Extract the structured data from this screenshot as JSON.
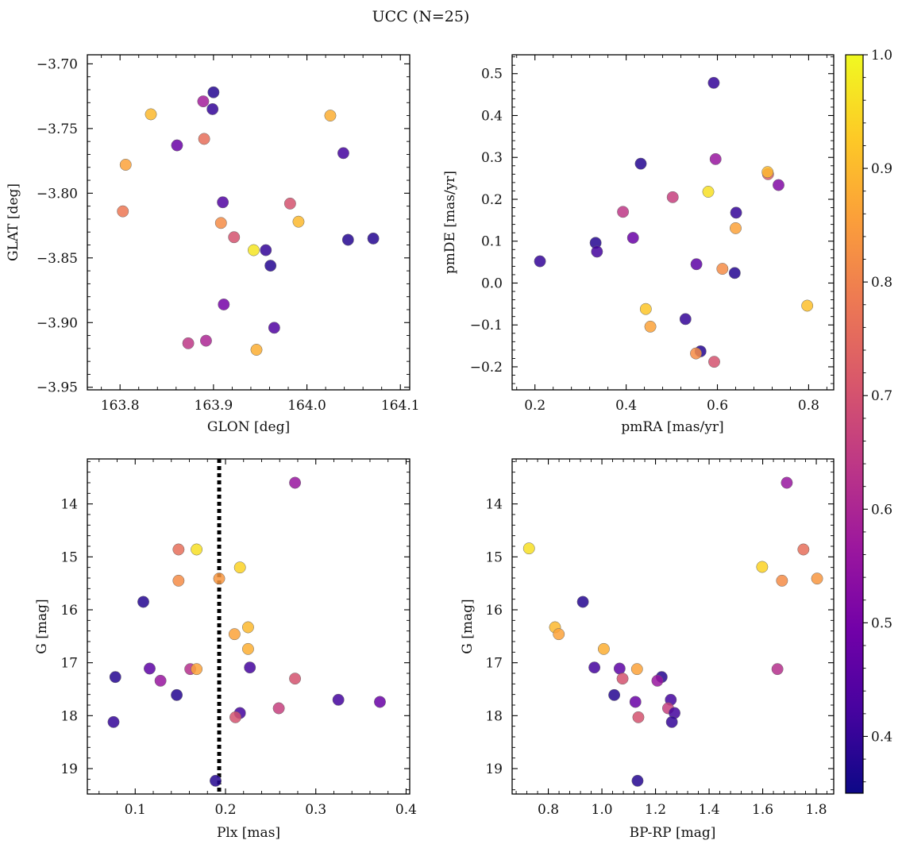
{
  "figure": {
    "title": "UCC (N=25)"
  },
  "colorbar": {
    "cmap": "plasma",
    "range": [
      0.35,
      1.0
    ],
    "ticks": [
      0.4,
      0.5,
      0.6,
      0.7,
      0.8,
      0.9,
      1.0
    ],
    "tick_labels": [
      "0.4",
      "0.5",
      "0.6",
      "0.7",
      "0.8",
      "0.9",
      "1.0"
    ],
    "stops": [
      "#0d0887",
      "#46039f",
      "#7201a8",
      "#9c179e",
      "#bd3786",
      "#d8576b",
      "#ed7953",
      "#fb9f3a",
      "#fdca26",
      "#f0f921"
    ]
  },
  "chart_data": [
    {
      "type": "scatter",
      "xlabel": "GLON [deg]",
      "ylabel": "GLAT [deg]",
      "xlim": [
        163.765,
        164.11
      ],
      "ylim": [
        -3.952,
        -3.693
      ],
      "xticks": [
        163.8,
        163.9,
        164.0,
        164.1
      ],
      "xtick_labels": [
        "163.8",
        "163.9",
        "164.0",
        "164.1"
      ],
      "yticks": [
        -3.95,
        -3.9,
        -3.85,
        -3.8,
        -3.75,
        -3.7
      ],
      "ytick_labels": [
        "−3.95",
        "−3.90",
        "−3.85",
        "−3.80",
        "−3.75",
        "−3.70"
      ],
      "invert_y": false,
      "points": [
        {
          "x": 163.833,
          "y": -3.739,
          "c": 0.9
        },
        {
          "x": 163.806,
          "y": -3.778,
          "c": 0.86
        },
        {
          "x": 163.803,
          "y": -3.814,
          "c": 0.78
        },
        {
          "x": 163.861,
          "y": -3.763,
          "c": 0.48
        },
        {
          "x": 163.889,
          "y": -3.729,
          "c": 0.58
        },
        {
          "x": 163.89,
          "y": -3.758,
          "c": 0.76
        },
        {
          "x": 163.9,
          "y": -3.722,
          "c": 0.38
        },
        {
          "x": 163.899,
          "y": -3.735,
          "c": 0.4
        },
        {
          "x": 163.91,
          "y": -3.807,
          "c": 0.44
        },
        {
          "x": 163.908,
          "y": -3.823,
          "c": 0.82
        },
        {
          "x": 163.922,
          "y": -3.834,
          "c": 0.7
        },
        {
          "x": 163.943,
          "y": -3.844,
          "c": 0.97
        },
        {
          "x": 163.956,
          "y": -3.844,
          "c": 0.4
        },
        {
          "x": 163.961,
          "y": -3.856,
          "c": 0.38
        },
        {
          "x": 163.911,
          "y": -3.886,
          "c": 0.5
        },
        {
          "x": 163.965,
          "y": -3.904,
          "c": 0.44
        },
        {
          "x": 163.892,
          "y": -3.914,
          "c": 0.6
        },
        {
          "x": 163.873,
          "y": -3.916,
          "c": 0.64
        },
        {
          "x": 163.946,
          "y": -3.921,
          "c": 0.88
        },
        {
          "x": 163.982,
          "y": -3.808,
          "c": 0.7
        },
        {
          "x": 163.991,
          "y": -3.822,
          "c": 0.9
        },
        {
          "x": 164.025,
          "y": -3.74,
          "c": 0.88
        },
        {
          "x": 164.039,
          "y": -3.769,
          "c": 0.42
        },
        {
          "x": 164.044,
          "y": -3.836,
          "c": 0.38
        },
        {
          "x": 164.071,
          "y": -3.835,
          "c": 0.38
        }
      ]
    },
    {
      "type": "scatter",
      "xlabel": "pmRA [mas/yr]",
      "ylabel": "pmDE [mas/yr]",
      "xlim": [
        0.15,
        0.855
      ],
      "ylim": [
        -0.255,
        0.545
      ],
      "xticks": [
        0.2,
        0.4,
        0.6,
        0.8
      ],
      "xtick_labels": [
        "0.2",
        "0.4",
        "0.6",
        "0.8"
      ],
      "yticks": [
        -0.2,
        -0.1,
        0.0,
        0.1,
        0.2,
        0.3,
        0.4,
        0.5
      ],
      "ytick_labels": [
        "−0.2",
        "−0.1",
        "0.0",
        "0.1",
        "0.2",
        "0.3",
        "0.4",
        "0.5"
      ],
      "invert_y": false,
      "points": [
        {
          "x": 0.592,
          "y": 0.478,
          "c": 0.4
        },
        {
          "x": 0.432,
          "y": 0.285,
          "c": 0.38
        },
        {
          "x": 0.596,
          "y": 0.296,
          "c": 0.56
        },
        {
          "x": 0.711,
          "y": 0.26,
          "c": 0.72
        },
        {
          "x": 0.71,
          "y": 0.265,
          "c": 0.9
        },
        {
          "x": 0.734,
          "y": 0.234,
          "c": 0.52
        },
        {
          "x": 0.58,
          "y": 0.218,
          "c": 0.96
        },
        {
          "x": 0.502,
          "y": 0.205,
          "c": 0.66
        },
        {
          "x": 0.393,
          "y": 0.17,
          "c": 0.64
        },
        {
          "x": 0.641,
          "y": 0.168,
          "c": 0.4
        },
        {
          "x": 0.64,
          "y": 0.131,
          "c": 0.86
        },
        {
          "x": 0.415,
          "y": 0.108,
          "c": 0.48
        },
        {
          "x": 0.333,
          "y": 0.096,
          "c": 0.38
        },
        {
          "x": 0.336,
          "y": 0.075,
          "c": 0.42
        },
        {
          "x": 0.211,
          "y": 0.052,
          "c": 0.4
        },
        {
          "x": 0.554,
          "y": 0.045,
          "c": 0.46
        },
        {
          "x": 0.611,
          "y": 0.034,
          "c": 0.82
        },
        {
          "x": 0.638,
          "y": 0.024,
          "c": 0.38
        },
        {
          "x": 0.443,
          "y": -0.062,
          "c": 0.92
        },
        {
          "x": 0.797,
          "y": -0.054,
          "c": 0.91
        },
        {
          "x": 0.53,
          "y": -0.086,
          "c": 0.4
        },
        {
          "x": 0.453,
          "y": -0.104,
          "c": 0.86
        },
        {
          "x": 0.563,
          "y": -0.163,
          "c": 0.38
        },
        {
          "x": 0.553,
          "y": -0.168,
          "c": 0.82
        },
        {
          "x": 0.593,
          "y": -0.188,
          "c": 0.7
        }
      ]
    },
    {
      "type": "scatter",
      "xlabel": "Plx [mas]",
      "ylabel": "G [mag]",
      "xlim": [
        0.047,
        0.404
      ],
      "ylim": [
        13.15,
        19.48
      ],
      "xticks": [
        0.1,
        0.2,
        0.3,
        0.4
      ],
      "xtick_labels": [
        "0.1",
        "0.2",
        "0.3",
        "0.4"
      ],
      "yticks": [
        14,
        15,
        16,
        17,
        18,
        19
      ],
      "ytick_labels": [
        "14",
        "15",
        "16",
        "17",
        "18",
        "19"
      ],
      "invert_y": true,
      "vline": 0.193,
      "points": [
        {
          "x": 0.277,
          "y": 13.6,
          "c": 0.56
        },
        {
          "x": 0.148,
          "y": 14.86,
          "c": 0.76
        },
        {
          "x": 0.168,
          "y": 14.86,
          "c": 0.96
        },
        {
          "x": 0.216,
          "y": 15.2,
          "c": 0.94
        },
        {
          "x": 0.148,
          "y": 15.45,
          "c": 0.82
        },
        {
          "x": 0.193,
          "y": 15.41,
          "c": 0.84
        },
        {
          "x": 0.109,
          "y": 15.85,
          "c": 0.38
        },
        {
          "x": 0.225,
          "y": 16.33,
          "c": 0.9
        },
        {
          "x": 0.21,
          "y": 16.46,
          "c": 0.86
        },
        {
          "x": 0.225,
          "y": 16.74,
          "c": 0.88
        },
        {
          "x": 0.227,
          "y": 17.09,
          "c": 0.42
        },
        {
          "x": 0.116,
          "y": 17.11,
          "c": 0.46
        },
        {
          "x": 0.161,
          "y": 17.12,
          "c": 0.62
        },
        {
          "x": 0.168,
          "y": 17.12,
          "c": 0.86
        },
        {
          "x": 0.078,
          "y": 17.27,
          "c": 0.38
        },
        {
          "x": 0.128,
          "y": 17.34,
          "c": 0.56
        },
        {
          "x": 0.277,
          "y": 17.3,
          "c": 0.7
        },
        {
          "x": 0.146,
          "y": 17.61,
          "c": 0.38
        },
        {
          "x": 0.325,
          "y": 17.7,
          "c": 0.42
        },
        {
          "x": 0.371,
          "y": 17.74,
          "c": 0.48
        },
        {
          "x": 0.259,
          "y": 17.86,
          "c": 0.66
        },
        {
          "x": 0.216,
          "y": 17.95,
          "c": 0.42
        },
        {
          "x": 0.211,
          "y": 18.03,
          "c": 0.7
        },
        {
          "x": 0.076,
          "y": 18.12,
          "c": 0.4
        },
        {
          "x": 0.189,
          "y": 19.23,
          "c": 0.38
        }
      ]
    },
    {
      "type": "scatter",
      "xlabel": "BP-RP [mag]",
      "ylabel": "G [mag]",
      "xlim": [
        0.665,
        1.865
      ],
      "ylim": [
        13.15,
        19.48
      ],
      "xticks": [
        0.8,
        1.0,
        1.2,
        1.4,
        1.6,
        1.8
      ],
      "xtick_labels": [
        "0.8",
        "1.0",
        "1.2",
        "1.4",
        "1.6",
        "1.8"
      ],
      "yticks": [
        14,
        15,
        16,
        17,
        18,
        19
      ],
      "ytick_labels": [
        "14",
        "15",
        "16",
        "17",
        "18",
        "19"
      ],
      "invert_y": true,
      "points": [
        {
          "x": 1.69,
          "y": 13.6,
          "c": 0.56
        },
        {
          "x": 0.728,
          "y": 14.84,
          "c": 0.96
        },
        {
          "x": 1.752,
          "y": 14.86,
          "c": 0.76
        },
        {
          "x": 1.598,
          "y": 15.19,
          "c": 0.94
        },
        {
          "x": 1.672,
          "y": 15.45,
          "c": 0.82
        },
        {
          "x": 1.803,
          "y": 15.41,
          "c": 0.84
        },
        {
          "x": 0.929,
          "y": 15.85,
          "c": 0.38
        },
        {
          "x": 0.825,
          "y": 16.33,
          "c": 0.9
        },
        {
          "x": 0.839,
          "y": 16.46,
          "c": 0.86
        },
        {
          "x": 1.007,
          "y": 16.74,
          "c": 0.88
        },
        {
          "x": 0.972,
          "y": 17.09,
          "c": 0.42
        },
        {
          "x": 1.066,
          "y": 17.11,
          "c": 0.46
        },
        {
          "x": 1.655,
          "y": 17.12,
          "c": 0.62
        },
        {
          "x": 1.131,
          "y": 17.12,
          "c": 0.86
        },
        {
          "x": 1.223,
          "y": 17.27,
          "c": 0.38
        },
        {
          "x": 1.207,
          "y": 17.34,
          "c": 0.56
        },
        {
          "x": 1.077,
          "y": 17.3,
          "c": 0.7
        },
        {
          "x": 1.046,
          "y": 17.61,
          "c": 0.38
        },
        {
          "x": 1.257,
          "y": 17.7,
          "c": 0.42
        },
        {
          "x": 1.125,
          "y": 17.74,
          "c": 0.48
        },
        {
          "x": 1.247,
          "y": 17.86,
          "c": 0.66
        },
        {
          "x": 1.271,
          "y": 17.95,
          "c": 0.42
        },
        {
          "x": 1.136,
          "y": 18.03,
          "c": 0.7
        },
        {
          "x": 1.261,
          "y": 18.12,
          "c": 0.4
        },
        {
          "x": 1.133,
          "y": 19.23,
          "c": 0.38
        }
      ]
    }
  ]
}
